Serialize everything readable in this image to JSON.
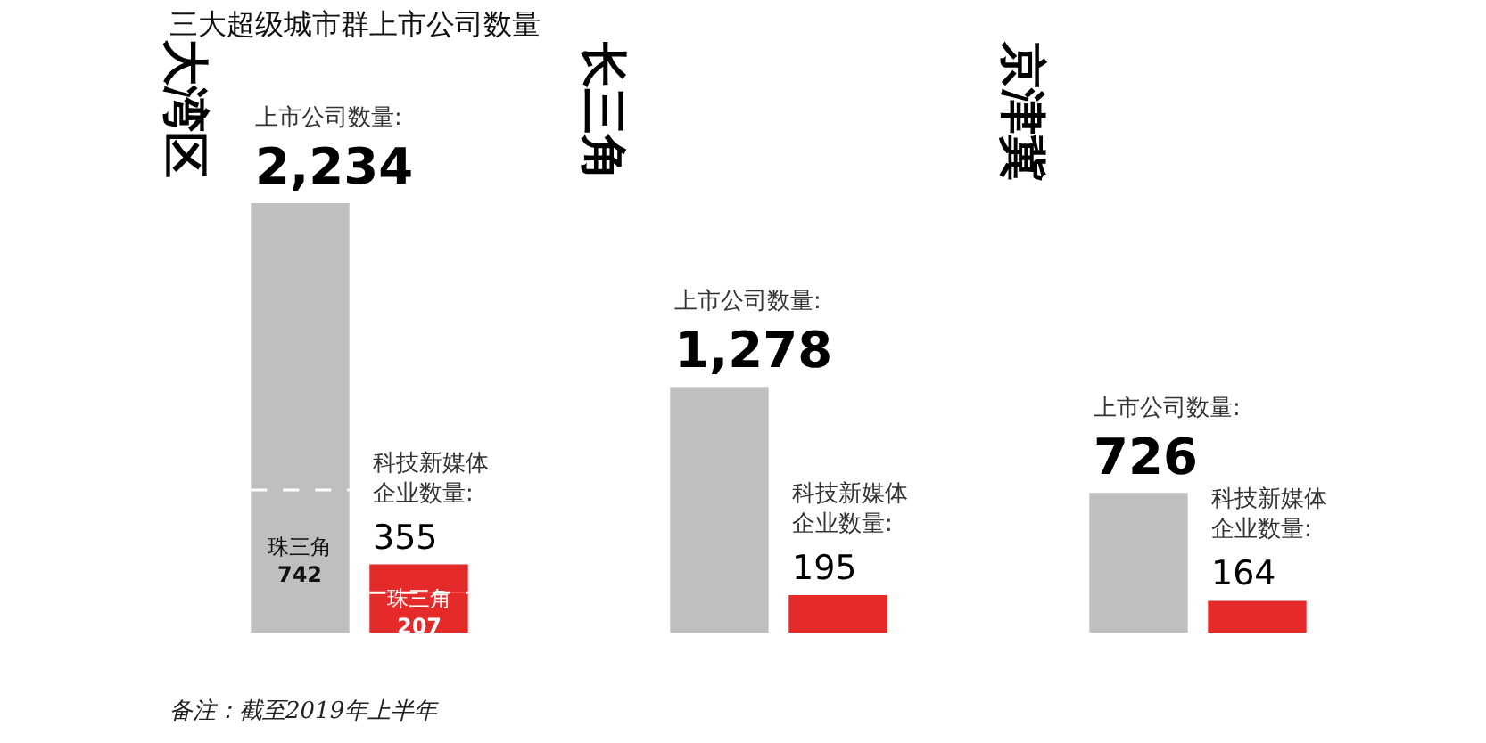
{
  "chart_data": [
    {
      "type": "bar",
      "title": "大湾区",
      "categories": [
        null,
        null
      ],
      "stacked": true,
      "series": [
        {
          "name": "珠三角",
          "colors": [
            "#bfbfbf",
            "#e52a2a"
          ],
          "values": [
            742,
            207
          ],
          "value_labels": [
            "742",
            "207"
          ]
        },
        {
          "colors": [
            "#bfbfbf",
            "#e52a2a"
          ],
          "values": [
            1492,
            148
          ]
        }
      ],
      "totals": [
        "2,234",
        "355"
      ],
      "annotations": [
        "上市公司数量:",
        "科技新媒体企业数量:",
        "三大超级城市群上市公司数量",
        "备注：截至2019年上半年"
      ]
    },
    {
      "type": "bar",
      "title": "长三角",
      "categories": [
        null,
        null
      ],
      "values": [
        1278,
        195
      ],
      "colors": [
        "#bfbfbf",
        "#e52a2a"
      ],
      "value_labels": [
        "1,278",
        "195"
      ],
      "annotations": [
        "上市公司数量:",
        "科技新媒体企业数量:"
      ]
    },
    {
      "type": "bar",
      "title": "京津冀",
      "categories": [
        null,
        null
      ],
      "values": [
        726,
        164
      ],
      "colors": [
        "#bfbfbf",
        "#e52a2a"
      ],
      "value_labels": [
        "726",
        "164"
      ],
      "annotations": [
        "上市公司数量:",
        "科技新媒体企业数量:"
      ]
    }
  ]
}
